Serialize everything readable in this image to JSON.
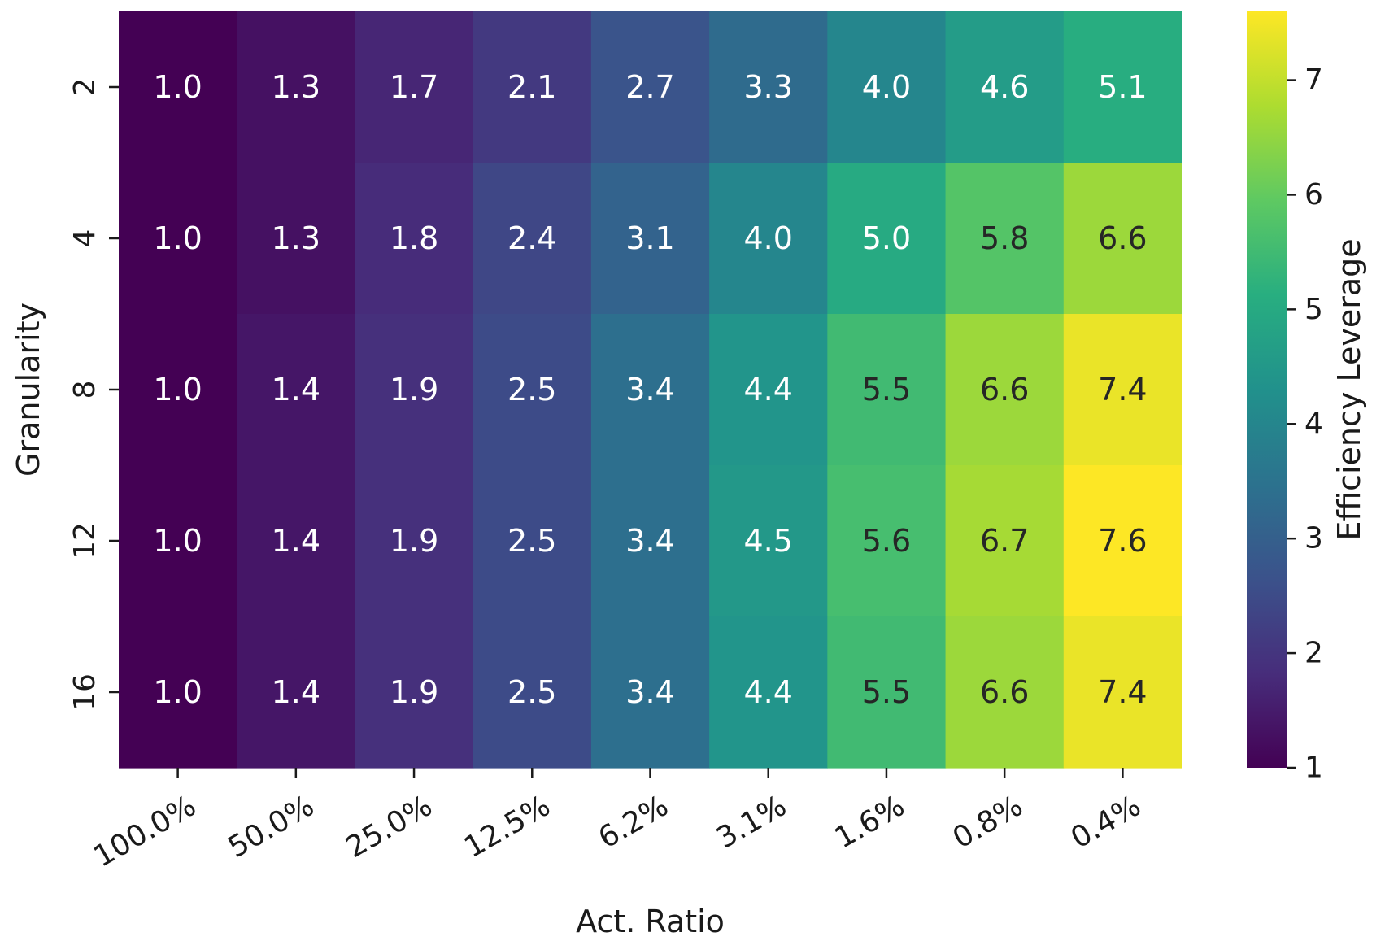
{
  "chart_data": {
    "type": "heatmap",
    "xlabel": "Act. Ratio",
    "ylabel": "Granularity",
    "x_categories": [
      "100.0%",
      "50.0%",
      "25.0%",
      "12.5%",
      "6.2%",
      "3.1%",
      "1.6%",
      "0.8%",
      "0.4%"
    ],
    "y_categories": [
      "2",
      "4",
      "8",
      "12",
      "16"
    ],
    "values": [
      [
        1.0,
        1.3,
        1.7,
        2.1,
        2.7,
        3.3,
        4.0,
        4.6,
        5.1
      ],
      [
        1.0,
        1.3,
        1.8,
        2.4,
        3.1,
        4.0,
        5.0,
        5.8,
        6.6
      ],
      [
        1.0,
        1.4,
        1.9,
        2.5,
        3.4,
        4.4,
        5.5,
        6.6,
        7.4
      ],
      [
        1.0,
        1.4,
        1.9,
        2.5,
        3.4,
        4.5,
        5.6,
        6.7,
        7.6
      ],
      [
        1.0,
        1.4,
        1.9,
        2.5,
        3.4,
        4.4,
        5.5,
        6.6,
        7.4
      ]
    ],
    "colorbar": {
      "label": "Efficiency Leverage",
      "colormap": "viridis",
      "range": [
        1.0,
        7.6
      ],
      "ticks": [
        "1",
        "2",
        "3",
        "4",
        "5",
        "6",
        "7"
      ]
    },
    "annotation_colors": {
      "light": "#ffffff",
      "dark": "#262626"
    },
    "legend": "none",
    "grid": false
  }
}
